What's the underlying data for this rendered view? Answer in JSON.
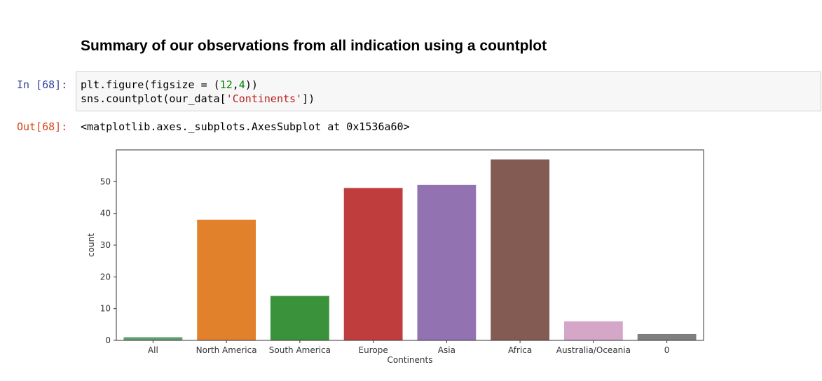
{
  "notebook": {
    "heading": "Summary of our observations from all indication using a countplot",
    "input_prompt": "In [68]:",
    "output_prompt": "Out[68]:",
    "code": {
      "line1": {
        "pre": "plt.figure(figsize = (",
        "n1": "12",
        "sep": ",",
        "n2": "4",
        "post": "))"
      },
      "line2": {
        "pre": "sns.countplot(our_data[",
        "str": "'Continents'",
        "post": "])"
      }
    },
    "output_text": "<matplotlib.axes._subplots.AxesSubplot at 0x1536a60>"
  },
  "chart_data": {
    "type": "bar",
    "categories": [
      "All",
      "North America",
      "South America",
      "Europe",
      "Asia",
      "Africa",
      "Australia/Oceania",
      "0"
    ],
    "values": [
      1,
      38,
      14,
      48,
      49,
      57,
      6,
      2
    ],
    "colors": [
      "#5f9e6e",
      "#e1812c",
      "#3a923a",
      "#c03d3e",
      "#9372b2",
      "#845b53",
      "#d4a6c8",
      "#7f7f7f"
    ],
    "xlabel": "Continents",
    "ylabel": "count",
    "ylim": [
      0,
      60
    ],
    "yticks": [
      0,
      10,
      20,
      30,
      40,
      50
    ],
    "grid": false
  }
}
